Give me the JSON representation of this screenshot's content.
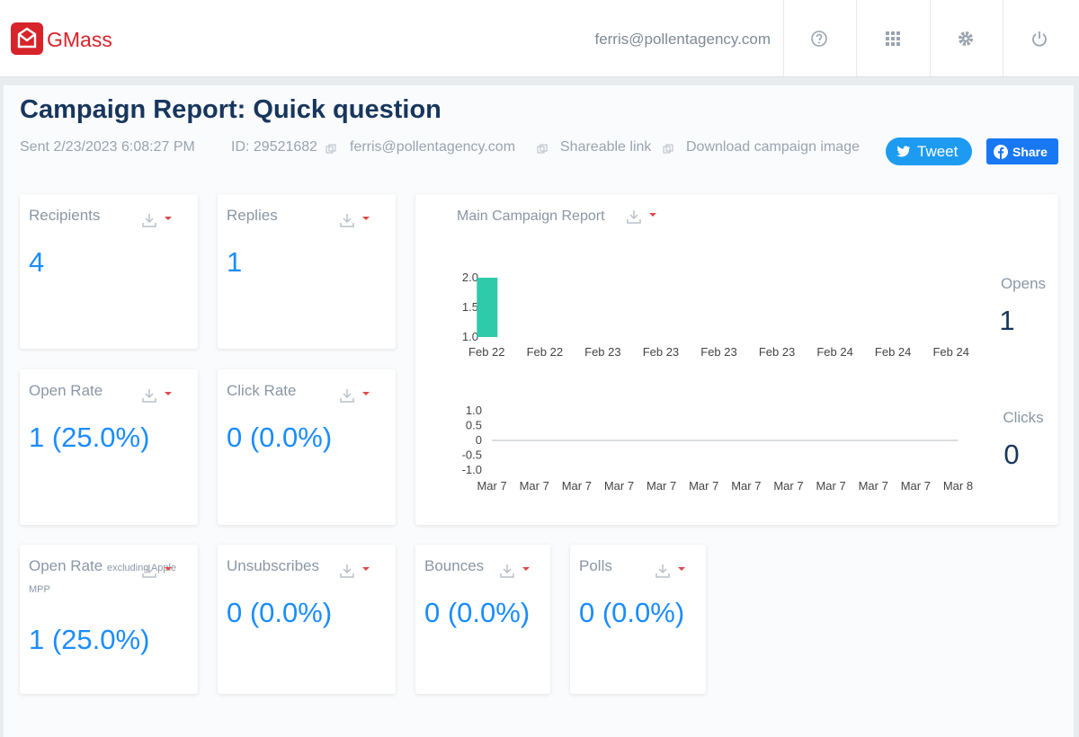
{
  "header": {
    "brand": "GMass",
    "user_email": "ferris@pollentagency.com"
  },
  "report": {
    "title": "Campaign Report: Quick question",
    "meta": [
      "Sent 2/23/2023 6:08:27 PM",
      "ID: 29521682",
      "ferris@pollentagency.com",
      "Shareable link",
      "Download campaign image"
    ],
    "tweet": "Tweet",
    "share": "Share"
  },
  "cards": [
    {
      "label": "Recipients",
      "value": "4"
    },
    {
      "label": "Replies",
      "value": "1"
    },
    {
      "label": "Open Rate",
      "value": "1 (25.0%)"
    },
    {
      "label": "Click Rate",
      "value": "0 (0.0%)"
    },
    {
      "label": "Open Rate",
      "note": "excluding Apple MPP",
      "value": "1 (25.0%)"
    },
    {
      "label": "Unsubscribes",
      "value": "0 (0.0%)"
    },
    {
      "label": "Bounces",
      "value": "0 (0.0%)"
    },
    {
      "label": "Polls",
      "value": "0 (0.0%)"
    }
  ],
  "panel_title": "Main Campaign Report",
  "chart_data": [
    {
      "type": "bar",
      "categories": [
        "Feb 22",
        "Feb 22",
        "Feb 23",
        "Feb 23",
        "Feb 23",
        "Feb 23",
        "Feb 24",
        "Feb 24",
        "Feb 24"
      ],
      "values": [
        2,
        null,
        null,
        null,
        null,
        null,
        null,
        null,
        null
      ],
      "color": "#2fcaa9",
      "ylim": [
        1,
        2
      ],
      "yticks": [
        {
          "value": 1,
          "label": "1.0"
        },
        1.5,
        {
          "value": 2,
          "label": "2.0"
        }
      ],
      "grid": false,
      "stat_label": "Opens",
      "stat_value": "1"
    },
    {
      "type": "line",
      "categories": [
        "Mar 7",
        "Mar 7",
        "Mar 7",
        "Mar 7",
        "Mar 7",
        "Mar 7",
        "Mar 7",
        "Mar 7",
        "Mar 7",
        "Mar 7",
        "Mar 7",
        "Mar 8"
      ],
      "values": [
        0,
        0,
        0,
        0,
        0,
        0,
        0,
        0,
        0,
        0,
        0,
        0
      ],
      "color": "#cfd3d8",
      "ylim": [
        -1,
        1
      ],
      "yticks": [
        {
          "value": -1,
          "label": "-1.0"
        },
        -0.5,
        0,
        0.5,
        {
          "value": 1,
          "label": "1.0"
        }
      ],
      "grid": false,
      "stat_label": "Clicks",
      "stat_value": "0"
    }
  ]
}
